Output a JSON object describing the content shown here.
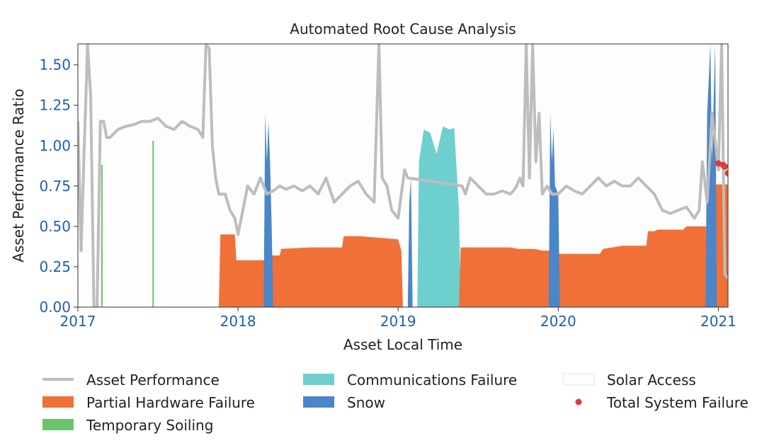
{
  "chart_data": {
    "type": "area",
    "title": "Automated Root Cause Analysis",
    "xlabel": "Asset Local Time",
    "ylabel": "Asset Performance Ratio",
    "xlim": [
      2017.0,
      2021.06
    ],
    "ylim": [
      0.0,
      1.63
    ],
    "xticks": [
      2017,
      2018,
      2019,
      2020,
      2021
    ],
    "xtick_labels": [
      "2017",
      "2018",
      "2019",
      "2020",
      "2021"
    ],
    "yticks": [
      0.0,
      0.25,
      0.5,
      0.75,
      1.0,
      1.25,
      1.5
    ],
    "ytick_labels": [
      "0.00",
      "0.25",
      "0.50",
      "0.75",
      "1.00",
      "1.25",
      "1.50"
    ],
    "grid": false,
    "legend": "bottom",
    "legend_entries": [
      {
        "name": "Asset Performance",
        "color": "#bdbdbd",
        "marker": "line"
      },
      {
        "name": "Communications Failure",
        "color": "#6ecfcf",
        "marker": "patch"
      },
      {
        "name": "Solar Access",
        "color": "#fdfdfd",
        "marker": "patch"
      },
      {
        "name": "Partial Hardware Failure",
        "color": "#f07038",
        "marker": "patch"
      },
      {
        "name": "Snow",
        "color": "#4a86c8",
        "marker": "patch"
      },
      {
        "name": "Total System Failure",
        "color": "#e53935",
        "marker": "dot"
      },
      {
        "name": "Temporary Soiling",
        "color": "#6cc36c",
        "marker": "patch"
      }
    ],
    "series": [
      {
        "name": "Asset Performance",
        "kind": "line",
        "color": "#bdbdbd",
        "x": [
          2017.0,
          2017.02,
          2017.04,
          2017.05,
          2017.06,
          2017.08,
          2017.1,
          2017.12,
          2017.14,
          2017.16,
          2017.18,
          2017.2,
          2017.25,
          2017.3,
          2017.35,
          2017.4,
          2017.45,
          2017.5,
          2017.55,
          2017.6,
          2017.65,
          2017.7,
          2017.75,
          2017.78,
          2017.8,
          2017.82,
          2017.84,
          2017.86,
          2017.88,
          2017.92,
          2017.95,
          2017.98,
          2018.0,
          2018.03,
          2018.06,
          2018.1,
          2018.14,
          2018.18,
          2018.22,
          2018.26,
          2018.3,
          2018.35,
          2018.4,
          2018.45,
          2018.5,
          2018.55,
          2018.6,
          2018.65,
          2018.7,
          2018.75,
          2018.8,
          2018.85,
          2018.88,
          2018.9,
          2018.93,
          2018.96,
          2019.0,
          2019.02,
          2019.04,
          2019.06,
          2019.4,
          2019.42,
          2019.45,
          2019.5,
          2019.55,
          2019.6,
          2019.65,
          2019.7,
          2019.72,
          2019.74,
          2019.76,
          2019.78,
          2019.8,
          2019.82,
          2019.84,
          2019.86,
          2019.88,
          2019.9,
          2019.93,
          2019.96,
          2020.0,
          2020.05,
          2020.1,
          2020.15,
          2020.2,
          2020.25,
          2020.3,
          2020.35,
          2020.4,
          2020.45,
          2020.5,
          2020.55,
          2020.6,
          2020.65,
          2020.7,
          2020.75,
          2020.8,
          2020.85,
          2020.88,
          2020.9,
          2020.93,
          2020.96,
          2021.0,
          2021.02,
          2021.04,
          2021.06
        ],
        "y": [
          1.15,
          0.35,
          1.0,
          1.3,
          1.63,
          1.3,
          0.0,
          0.0,
          1.15,
          1.15,
          1.05,
          1.05,
          1.1,
          1.12,
          1.13,
          1.15,
          1.15,
          1.17,
          1.12,
          1.1,
          1.15,
          1.12,
          1.1,
          1.05,
          1.63,
          1.6,
          1.0,
          0.8,
          0.7,
          0.7,
          0.6,
          0.55,
          0.45,
          0.6,
          0.75,
          0.7,
          0.8,
          0.7,
          0.72,
          0.75,
          0.73,
          0.75,
          0.72,
          0.75,
          0.7,
          0.8,
          0.65,
          0.7,
          0.75,
          0.78,
          0.7,
          0.65,
          1.63,
          0.8,
          0.75,
          0.6,
          0.55,
          0.7,
          0.85,
          0.8,
          0.75,
          0.7,
          0.8,
          0.75,
          0.7,
          0.7,
          0.72,
          0.7,
          0.72,
          0.75,
          0.8,
          0.75,
          1.63,
          0.8,
          1.63,
          0.9,
          1.2,
          0.7,
          0.75,
          0.7,
          0.7,
          0.75,
          0.72,
          0.7,
          0.75,
          0.8,
          0.75,
          0.78,
          0.75,
          0.75,
          0.8,
          0.75,
          0.7,
          0.6,
          0.58,
          0.6,
          0.62,
          0.55,
          0.6,
          0.9,
          0.65,
          1.2,
          0.85,
          1.63,
          0.2,
          0.18
        ]
      },
      {
        "name": "Partial Hardware Failure",
        "kind": "area",
        "color": "#f07038",
        "x": [
          2017.88,
          2017.89,
          2017.98,
          2017.99,
          2018.18,
          2018.19,
          2018.26,
          2018.27,
          2018.45,
          2018.55,
          2018.65,
          2018.66,
          2018.75,
          2019.0,
          2019.02,
          2019.03,
          2019.38,
          2019.39,
          2019.7,
          2019.75,
          2019.85,
          2019.9,
          2019.96,
          2020.0,
          2020.26,
          2020.28,
          2020.4,
          2020.55,
          2020.56,
          2020.6,
          2020.62,
          2020.78,
          2020.8,
          2020.95,
          2020.97,
          2021.06
        ],
        "y": [
          0.0,
          0.45,
          0.45,
          0.29,
          0.29,
          0.32,
          0.32,
          0.36,
          0.37,
          0.37,
          0.37,
          0.44,
          0.44,
          0.42,
          0.35,
          0.0,
          0.0,
          0.37,
          0.37,
          0.36,
          0.36,
          0.35,
          0.35,
          0.33,
          0.33,
          0.36,
          0.38,
          0.38,
          0.47,
          0.47,
          0.48,
          0.48,
          0.5,
          0.5,
          0.76,
          0.76
        ]
      },
      {
        "name": "Communications Failure",
        "kind": "area",
        "color": "#6ecfcf",
        "x": [
          2019.12,
          2019.13,
          2019.16,
          2019.2,
          2019.24,
          2019.28,
          2019.32,
          2019.35,
          2019.38,
          2019.39
        ],
        "y": [
          0.0,
          0.9,
          1.1,
          1.08,
          0.95,
          1.12,
          1.1,
          1.11,
          0.6,
          0.0
        ]
      },
      {
        "name": "Snow",
        "kind": "area",
        "color": "#4a86c8",
        "x": [
          2018.16,
          2018.17,
          2018.18,
          2018.19,
          2018.2,
          2018.21,
          2018.22,
          2019.06,
          2019.07,
          2019.08,
          2019.09,
          2019.94,
          2019.95,
          2019.96,
          2019.97,
          2019.98,
          2020.0,
          2020.01,
          2020.92,
          2020.93,
          2020.95,
          2020.96,
          2020.98,
          2020.99
        ],
        "y": [
          0.0,
          1.2,
          0.9,
          1.15,
          0.9,
          0.5,
          0.0,
          0.0,
          0.65,
          0.8,
          0.0,
          0.0,
          1.2,
          0.9,
          1.1,
          0.75,
          0.7,
          0.0,
          0.0,
          1.2,
          1.63,
          0.9,
          1.63,
          0.0
        ]
      },
      {
        "name": "Temporary Soiling",
        "kind": "spikes",
        "color": "#6cc36c",
        "x": [
          2017.15,
          2017.47
        ],
        "y": [
          0.88,
          1.03
        ]
      },
      {
        "name": "Total System Failure",
        "kind": "scatter",
        "color": "#e53935",
        "x": [
          2021.0,
          2021.03,
          2021.04,
          2021.06,
          2021.07
        ],
        "y": [
          0.89,
          0.88,
          0.87,
          0.83,
          0.82
        ]
      }
    ]
  }
}
